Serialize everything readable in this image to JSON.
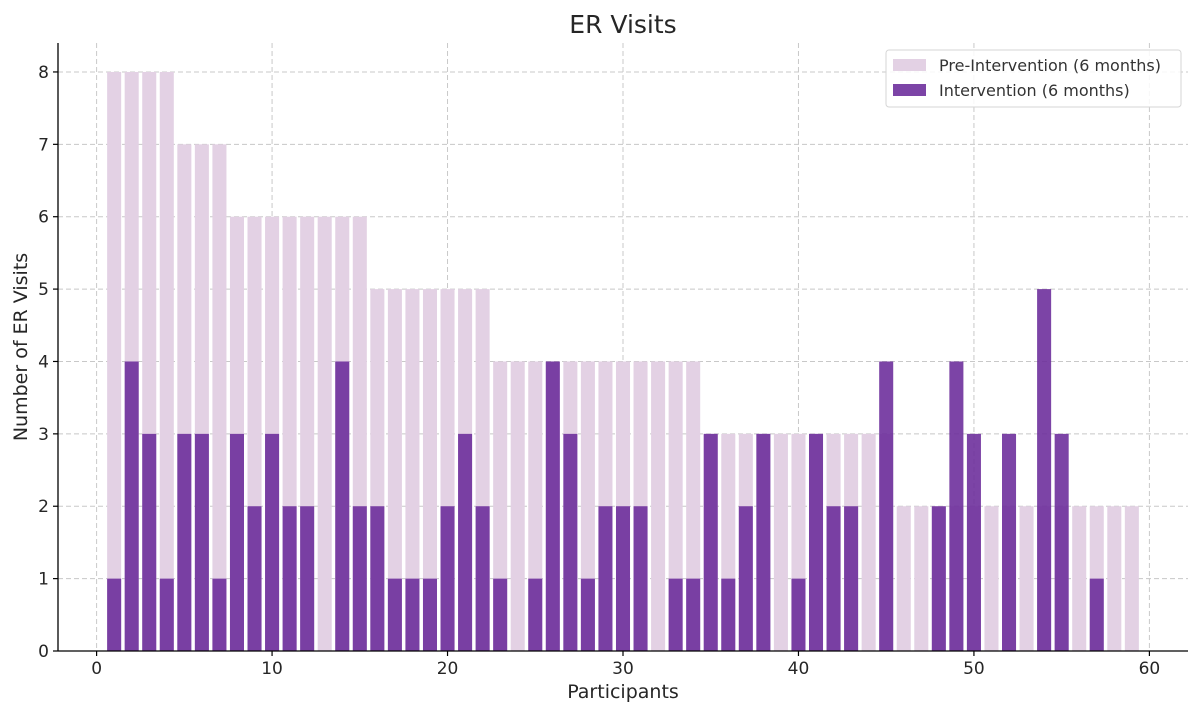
{
  "chart_data": {
    "type": "bar",
    "title": "ER Visits",
    "xlabel": "Participants",
    "ylabel": "Number of ER Visits",
    "xlim": [
      -2.2,
      62.2
    ],
    "ylim": [
      0,
      8.4
    ],
    "xticks": [
      0,
      10,
      20,
      30,
      40,
      50,
      60
    ],
    "yticks": [
      0,
      1,
      2,
      3,
      4,
      5,
      6,
      7,
      8
    ],
    "grid": true,
    "legend_position": "top-right",
    "x": [
      1,
      2,
      3,
      4,
      5,
      6,
      7,
      8,
      9,
      10,
      11,
      12,
      13,
      14,
      15,
      16,
      17,
      18,
      19,
      20,
      21,
      22,
      23,
      24,
      25,
      26,
      27,
      28,
      29,
      30,
      31,
      32,
      33,
      34,
      35,
      36,
      37,
      38,
      39,
      40,
      41,
      42,
      43,
      44,
      45,
      46,
      47,
      48,
      49,
      50,
      51,
      52,
      53,
      54,
      55,
      56,
      57,
      58,
      59
    ],
    "series": [
      {
        "name": "Pre-Intervention (6 months)",
        "color": "#e3d1e4",
        "opacity": 1,
        "values": [
          8,
          8,
          8,
          8,
          7,
          7,
          7,
          6,
          6,
          6,
          6,
          6,
          6,
          6,
          6,
          5,
          5,
          5,
          5,
          5,
          5,
          5,
          4,
          4,
          4,
          4,
          4,
          4,
          4,
          4,
          4,
          4,
          4,
          4,
          3,
          3,
          3,
          3,
          3,
          3,
          3,
          3,
          3,
          3,
          3,
          2,
          2,
          2,
          2,
          2,
          2,
          2,
          2,
          2,
          2,
          2,
          2,
          2,
          2
        ]
      },
      {
        "name": "Intervention (6 months)",
        "color": "#6a2a9a",
        "opacity": 0.88,
        "values": [
          1,
          4,
          3,
          1,
          3,
          3,
          1,
          3,
          2,
          3,
          2,
          2,
          0,
          4,
          2,
          2,
          1,
          1,
          1,
          2,
          3,
          2,
          1,
          0,
          1,
          4,
          3,
          1,
          2,
          2,
          2,
          0,
          1,
          1,
          3,
          1,
          2,
          3,
          0,
          1,
          3,
          2,
          2,
          0,
          4,
          0,
          0,
          2,
          4,
          3,
          0,
          3,
          0,
          5,
          3,
          0,
          1,
          0,
          0
        ]
      }
    ]
  }
}
